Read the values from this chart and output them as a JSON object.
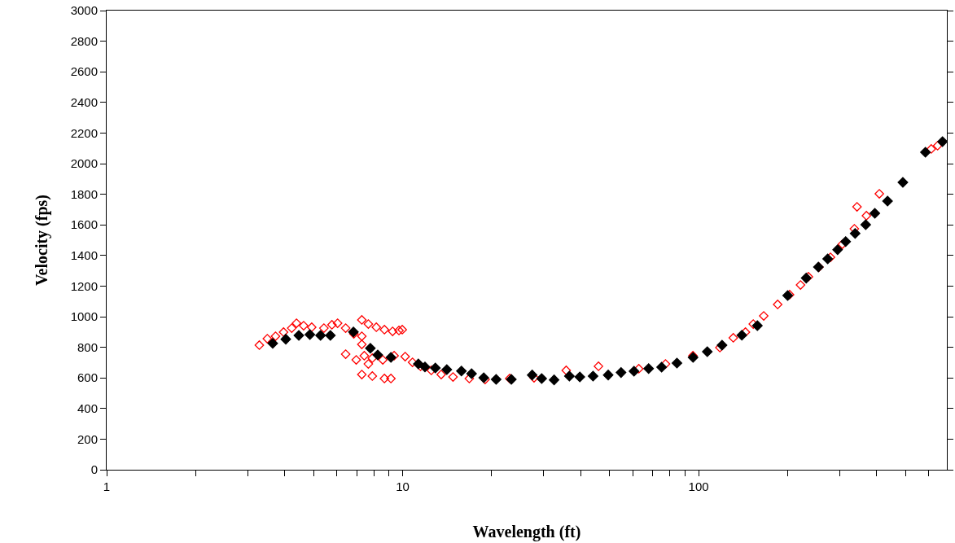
{
  "chart_data": {
    "type": "scatter",
    "xlabel": "Wavelength (ft)",
    "ylabel": "Velocity (fps)",
    "log": "x",
    "marker": "diamond",
    "xlim": [
      1,
      690
    ],
    "xticks": [
      1,
      {
        "value": 2,
        "label": null
      },
      {
        "value": 3,
        "label": null
      },
      {
        "value": 4,
        "label": null
      },
      {
        "value": 5,
        "label": null
      },
      {
        "value": 6,
        "label": null
      },
      {
        "value": 7,
        "label": null
      },
      {
        "value": 8,
        "label": null
      },
      {
        "value": 9,
        "label": null
      },
      10,
      {
        "value": 20,
        "label": null
      },
      {
        "value": 30,
        "label": null
      },
      {
        "value": 40,
        "label": null
      },
      {
        "value": 50,
        "label": null
      },
      {
        "value": 60,
        "label": null
      },
      {
        "value": 70,
        "label": null
      },
      {
        "value": 80,
        "label": null
      },
      {
        "value": 90,
        "label": null
      },
      100,
      {
        "value": 200,
        "label": null
      },
      {
        "value": 300,
        "label": null
      },
      {
        "value": 400,
        "label": null
      },
      {
        "value": 500,
        "label": null
      },
      {
        "value": 600,
        "label": null
      }
    ],
    "ylim": [
      0,
      3000
    ],
    "yticks": [
      0,
      200,
      400,
      600,
      800,
      1000,
      1200,
      1400,
      1600,
      1800,
      2000,
      2200,
      2400,
      2600,
      2800,
      3000
    ],
    "series": [
      {
        "color": "#ff0000",
        "x": [
          3.28,
          3.49,
          3.72,
          3.96,
          4.22,
          4.38,
          4.63,
          4.93,
          5.42,
          5.77,
          6.03,
          6.42,
          6.84,
          7.28,
          7.28,
          7.66,
          8.15,
          8.68,
          9.25,
          9.72,
          9.97,
          6.42,
          6.97,
          7.42,
          7.66,
          7.28,
          7.9,
          8.68,
          9.13,
          7.28,
          7.9,
          8.57,
          9.36,
          10.2,
          10.8,
          11.5,
          12.5,
          13.5,
          14.8,
          16.8,
          19.0,
          23.0,
          27.8,
          35.7,
          45.9,
          62.8,
          77.3,
          95.7,
          118,
          131,
          144,
          153,
          166,
          185,
          203,
          221,
          235,
          255,
          279,
          306,
          336,
          343,
          369,
          408,
          611,
          642
        ],
        "values": [
          814,
          856,
          872,
          899,
          925,
          957,
          941,
          931,
          925,
          947,
          957,
          925,
          888,
          872,
          979,
          952,
          931,
          915,
          904,
          910,
          915,
          755,
          718,
          745,
          691,
          622,
          612,
          596,
          596,
          819,
          729,
          718,
          745,
          739,
          702,
          676,
          649,
          622,
          606,
          596,
          590,
          596,
          601,
          649,
          676,
          660,
          691,
          745,
          798,
          862,
          899,
          952,
          1005,
          1080,
          1144,
          1207,
          1261,
          1324,
          1388,
          1473,
          1574,
          1718,
          1660,
          1803,
          2096,
          2117
        ]
      },
      {
        "color": "#000000",
        "x": [
          3.64,
          4.03,
          4.46,
          4.86,
          5.28,
          5.7,
          6.82,
          7.78,
          8.24,
          9.13,
          11.3,
          11.9,
          12.9,
          14.1,
          15.8,
          17.1,
          18.8,
          20.7,
          23.3,
          27.4,
          29.5,
          32.5,
          36.6,
          39.7,
          44.0,
          49.5,
          54.7,
          60.5,
          67.8,
          75.0,
          84.5,
          95.8,
          107,
          120,
          140,
          158,
          200,
          231,
          254,
          273,
          295,
          314,
          338,
          367,
          394,
          435,
          490,
          584,
          667
        ],
        "values": [
          826,
          853,
          878,
          883,
          878,
          878,
          900,
          794,
          750,
          734,
          691,
          672,
          665,
          654,
          645,
          628,
          601,
          590,
          590,
          619,
          596,
          587,
          612,
          606,
          612,
          619,
          635,
          644,
          661,
          670,
          697,
          734,
          771,
          814,
          879,
          941,
          1138,
          1252,
          1324,
          1378,
          1438,
          1491,
          1544,
          1601,
          1675,
          1755,
          1878,
          2074,
          2144
        ]
      }
    ]
  }
}
